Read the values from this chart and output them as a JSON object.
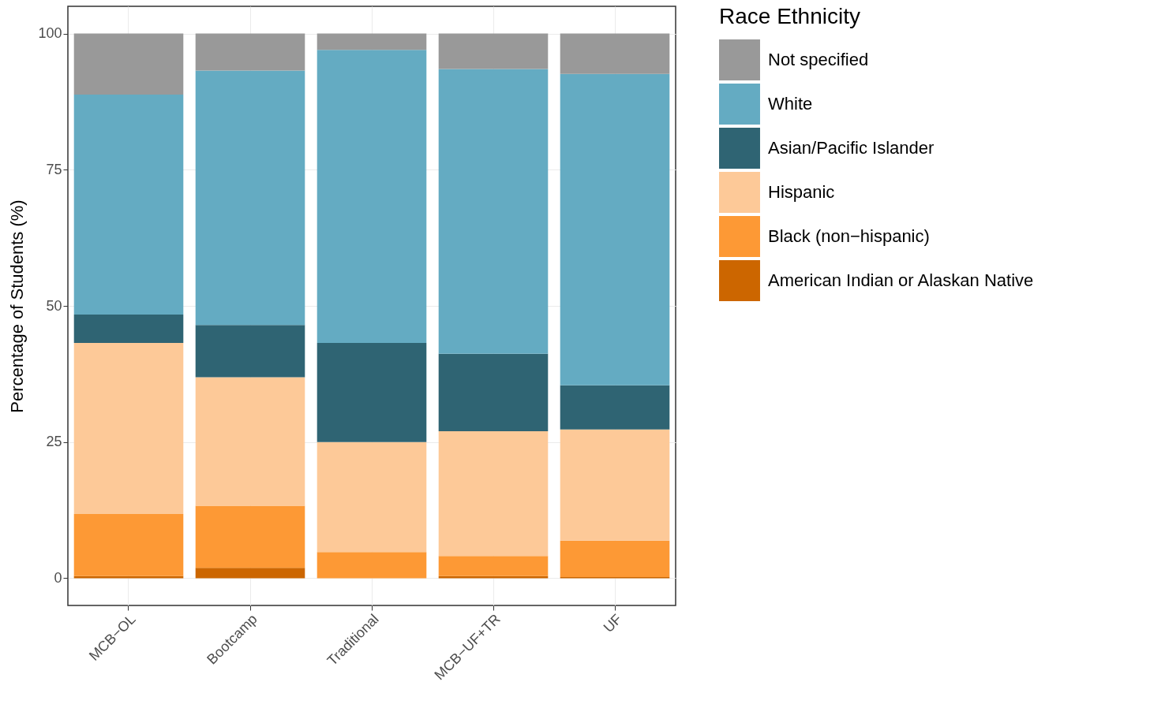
{
  "chart_data": {
    "type": "bar",
    "stacked": true,
    "ylabel": "Percentage of Students (%)",
    "legend_title": "Race Ethnicity",
    "categories": [
      "MCB−OL",
      "Bootcamp",
      "Traditional",
      "MCB−UF+TR",
      "UF"
    ],
    "series": [
      {
        "name": "American Indian or Alaskan Native",
        "color": "#cc6600",
        "values": [
          0.4,
          1.9,
          0,
          0.4,
          0.2
        ]
      },
      {
        "name": "Black (non−hispanic)",
        "color": "#fd9935",
        "values": [
          11.4,
          11.4,
          4.8,
          3.7,
          6.7
        ]
      },
      {
        "name": "Hispanic",
        "color": "#fdc998",
        "values": [
          31.4,
          23.6,
          20.2,
          22.9,
          20.4
        ]
      },
      {
        "name": "Asian/Pacific Islander",
        "color": "#2f6473",
        "values": [
          5.2,
          9.6,
          18.2,
          14.2,
          8.1
        ]
      },
      {
        "name": "White",
        "color": "#64abc2",
        "values": [
          40.4,
          46.7,
          53.8,
          52.3,
          57.2
        ]
      },
      {
        "name": "Not specified",
        "color": "#999999",
        "values": [
          11.2,
          6.8,
          3.0,
          6.5,
          7.4
        ]
      }
    ],
    "ylim": [
      -5,
      105
    ],
    "yticks": [
      0,
      25,
      50,
      75,
      100
    ],
    "grid": true,
    "legend": "right"
  }
}
